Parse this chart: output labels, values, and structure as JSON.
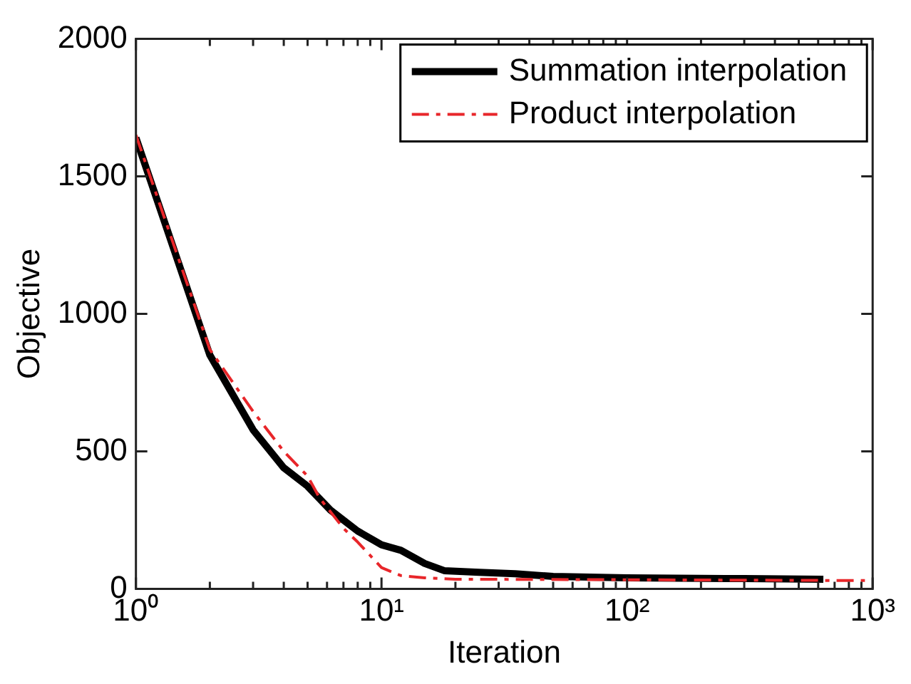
{
  "chart_data": {
    "type": "line",
    "xlabel": "Iteration",
    "ylabel": "Objective",
    "log": "x",
    "legend": "top right",
    "grid": false,
    "xlim": [
      1,
      1000
    ],
    "ylim": [
      0,
      2000
    ],
    "xticks": [
      {
        "value": 1,
        "label": "10⁰"
      },
      {
        "value": 2,
        "label": null
      },
      {
        "value": 3,
        "label": null
      },
      {
        "value": 4,
        "label": null
      },
      {
        "value": 5,
        "label": null
      },
      {
        "value": 6,
        "label": null
      },
      {
        "value": 7,
        "label": null
      },
      {
        "value": 8,
        "label": null
      },
      {
        "value": 9,
        "label": null
      },
      {
        "value": 10,
        "label": "10¹"
      },
      {
        "value": 20,
        "label": null
      },
      {
        "value": 30,
        "label": null
      },
      {
        "value": 40,
        "label": null
      },
      {
        "value": 50,
        "label": null
      },
      {
        "value": 60,
        "label": null
      },
      {
        "value": 70,
        "label": null
      },
      {
        "value": 80,
        "label": null
      },
      {
        "value": 90,
        "label": null
      },
      {
        "value": 100,
        "label": "10²"
      },
      {
        "value": 200,
        "label": null
      },
      {
        "value": 300,
        "label": null
      },
      {
        "value": 400,
        "label": null
      },
      {
        "value": 500,
        "label": null
      },
      {
        "value": 600,
        "label": null
      },
      {
        "value": 700,
        "label": null
      },
      {
        "value": 800,
        "label": null
      },
      {
        "value": 900,
        "label": null
      },
      {
        "value": 1000,
        "label": "10³"
      }
    ],
    "yticks": [
      0,
      500,
      1000,
      1500,
      2000
    ],
    "series": [
      {
        "name": "Summation interpolation",
        "color": "#000000",
        "line_style": "solid",
        "x": [
          1,
          2,
          3,
          4,
          5,
          6.2,
          8,
          10,
          12,
          15,
          18,
          25,
          35,
          50,
          100,
          300,
          630
        ],
        "values": [
          1640,
          850,
          578,
          440,
          373,
          286,
          210,
          160,
          140,
          92,
          66,
          60,
          55,
          45,
          40,
          37,
          35
        ]
      },
      {
        "name": "Product interpolation",
        "color": "#e8262a",
        "line_style": "dashed",
        "x": [
          1,
          2,
          3,
          4,
          5,
          5.6,
          7,
          8,
          10,
          12,
          15,
          20,
          100,
          930
        ],
        "values": [
          1650,
          870,
          645,
          500,
          410,
          330,
          220,
          170,
          77,
          48,
          40,
          35,
          33,
          30
        ]
      }
    ]
  }
}
